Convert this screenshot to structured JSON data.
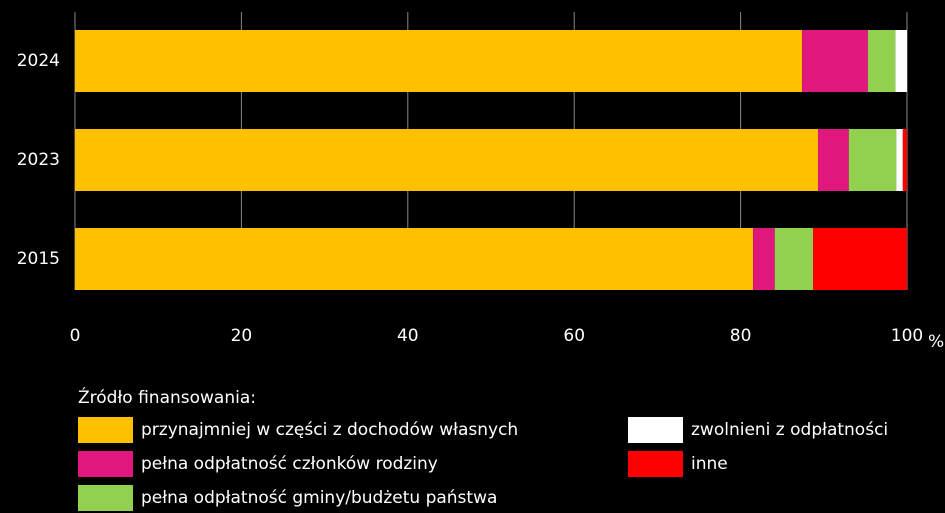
{
  "chart_data": {
    "type": "stacked-barh",
    "categories": [
      "2024",
      "2023",
      "2015"
    ],
    "series": [
      {
        "name": "przynajmniej w części z dochodów własnych",
        "color": "#ffc000",
        "values": [
          87.4,
          89.3,
          81.5
        ]
      },
      {
        "name": "pełna odpłatność członków rodziny",
        "color": "#e0177d",
        "values": [
          7.9,
          3.7,
          2.6
        ]
      },
      {
        "name": "pełna odpłatność gminy/budżetu państwa",
        "color": "#92d050",
        "values": [
          3.3,
          5.7,
          4.6
        ]
      },
      {
        "name": "zwolnieni z odpłatności",
        "color": "#ffffff",
        "values": [
          1.4,
          0.8,
          0
        ]
      },
      {
        "name": "inne",
        "color": "#ff0000",
        "values": [
          0,
          0.5,
          11.3
        ]
      }
    ],
    "xlim": [
      0,
      100
    ],
    "xticks": [
      0,
      20,
      40,
      60,
      80,
      100
    ],
    "xlabel": "%",
    "legend_title": "Źródło finansowania:",
    "grid": true
  }
}
